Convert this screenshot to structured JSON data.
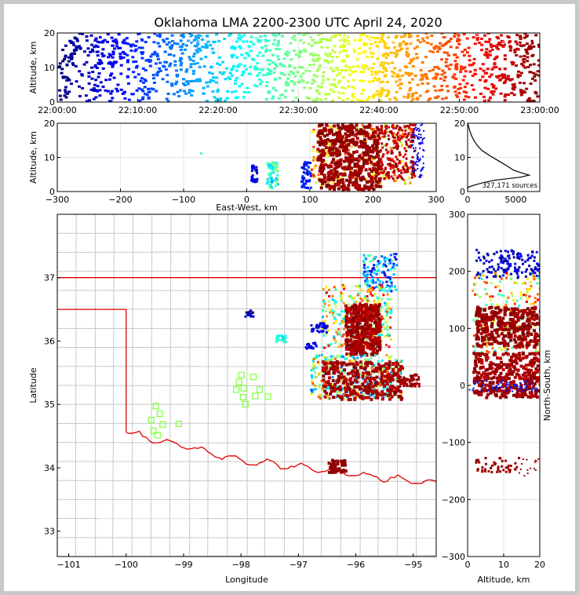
{
  "chart_data": {
    "type": "scatter",
    "title": "Oklahoma LMA 2200-2300 UTC April 24, 2020",
    "colormap": "jet",
    "source_count_label": "327,171 sources",
    "colors": {
      "border_state": "#e00000",
      "county": "#c8c8c8",
      "grid": "#e6e6e6",
      "station": "#80ff40",
      "background": "#ffffff"
    },
    "panels": [
      {
        "name": "time-altitude",
        "ylabel": "Altitude, km",
        "xlim": [
          "22:00:00",
          "23:00:00"
        ],
        "ylim": [
          0,
          20
        ],
        "xticks": [
          "22:00:00",
          "22:10:00",
          "22:20:00",
          "22:30:00",
          "22:40:00",
          "22:50:00",
          "23:00:00"
        ],
        "yticks": [
          "0",
          "10",
          "20"
        ]
      },
      {
        "name": "east-west-altitude",
        "xlabel": "East-West, km",
        "ylabel": "Altitude, km",
        "xlim": [
          -300,
          300
        ],
        "ylim": [
          0,
          20
        ],
        "xticks": [
          "−300",
          "−200",
          "−100",
          "0",
          "100",
          "200",
          "300"
        ],
        "yticks": [
          "0",
          "10",
          "20"
        ]
      },
      {
        "name": "altitude-histogram",
        "xlim": [
          0,
          7500
        ],
        "ylim": [
          0,
          20
        ],
        "xticks": [
          "0",
          "5000"
        ],
        "yticks": [
          "0",
          "10",
          "20"
        ]
      },
      {
        "name": "plan-view",
        "xlabel": "Longitude",
        "ylabel": "Latitude",
        "xlim": [
          -101.2,
          -94.6
        ],
        "ylim": [
          32.6,
          38.0
        ],
        "xticks": [
          "−101",
          "−100",
          "−99",
          "−98",
          "−97",
          "−96",
          "−95"
        ],
        "yticks": [
          "33",
          "34",
          "35",
          "36",
          "37"
        ]
      },
      {
        "name": "north-south-altitude",
        "xlabel": "Altitude, km",
        "ylabel": "North-South, km",
        "xlim": [
          0,
          20
        ],
        "ylim": [
          -300,
          300
        ],
        "xticks": [
          "0",
          "10",
          "20"
        ],
        "yticks": [
          "−300",
          "−200",
          "−100",
          "0",
          "100",
          "200",
          "300"
        ]
      }
    ],
    "stations": [
      {
        "lon": -99.57,
        "lat": 34.76
      },
      {
        "lon": -99.49,
        "lat": 34.98
      },
      {
        "lon": -99.42,
        "lat": 34.86
      },
      {
        "lon": -99.37,
        "lat": 34.69
      },
      {
        "lon": -99.53,
        "lat": 34.59
      },
      {
        "lon": -99.46,
        "lat": 34.52
      },
      {
        "lon": -99.09,
        "lat": 34.7
      },
      {
        "lon": -98.0,
        "lat": 35.47
      },
      {
        "lon": -98.04,
        "lat": 35.36
      },
      {
        "lon": -98.09,
        "lat": 35.24
      },
      {
        "lon": -97.96,
        "lat": 35.26
      },
      {
        "lon": -97.97,
        "lat": 35.12
      },
      {
        "lon": -97.93,
        "lat": 35.01
      },
      {
        "lon": -97.79,
        "lat": 35.44
      },
      {
        "lon": -97.76,
        "lat": 35.14
      },
      {
        "lon": -97.68,
        "lat": 35.24
      },
      {
        "lon": -97.54,
        "lat": 35.13
      }
    ],
    "altitude_histogram": [
      [
        0.9,
        0
      ],
      [
        1.3,
        100
      ],
      [
        1.8,
        600
      ],
      [
        2.5,
        1500
      ],
      [
        3.3,
        2800
      ],
      [
        4.2,
        5500
      ],
      [
        4.8,
        6400
      ],
      [
        5.3,
        5800
      ],
      [
        6.2,
        4800
      ],
      [
        7.5,
        4100
      ],
      [
        9.0,
        3200
      ],
      [
        10.5,
        2300
      ],
      [
        12.0,
        1500
      ],
      [
        13.5,
        1000
      ],
      [
        15.0,
        650
      ],
      [
        16.5,
        380
      ],
      [
        18.0,
        200
      ],
      [
        19.5,
        60
      ],
      [
        20.5,
        10
      ]
    ]
  }
}
